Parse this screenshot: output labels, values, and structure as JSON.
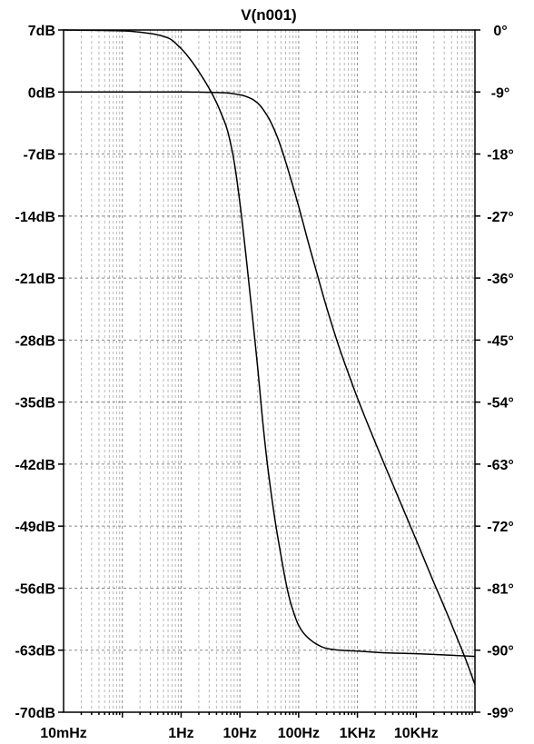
{
  "chart_data": {
    "type": "line",
    "title": "V(n001)",
    "x_scale": "log",
    "xlim": [
      0.01,
      100000
    ],
    "xticks": [
      {
        "value": 0.01,
        "label": "10mHz"
      },
      {
        "value": 1,
        "label": "1Hz"
      },
      {
        "value": 10,
        "label": "10Hz"
      },
      {
        "value": 100,
        "label": "100Hz"
      },
      {
        "value": 1000,
        "label": "1KHz"
      },
      {
        "value": 10000,
        "label": "10KHz"
      }
    ],
    "ylim_left": [
      -70,
      7
    ],
    "yticks_left": [
      {
        "value": 7,
        "label": "7dB"
      },
      {
        "value": 0,
        "label": "0dB"
      },
      {
        "value": -7,
        "label": "-7dB"
      },
      {
        "value": -14,
        "label": "-14dB"
      },
      {
        "value": -21,
        "label": "-21dB"
      },
      {
        "value": -28,
        "label": "-28dB"
      },
      {
        "value": -35,
        "label": "-35dB"
      },
      {
        "value": -42,
        "label": "-42dB"
      },
      {
        "value": -49,
        "label": "-49dB"
      },
      {
        "value": -56,
        "label": "-56dB"
      },
      {
        "value": -63,
        "label": "-63dB"
      },
      {
        "value": -70,
        "label": "-70dB"
      }
    ],
    "ylim_right": [
      -99,
      0
    ],
    "yticks_right": [
      {
        "value": 0,
        "label": "0°"
      },
      {
        "value": -9,
        "label": "-9°"
      },
      {
        "value": -18,
        "label": "-18°"
      },
      {
        "value": -27,
        "label": "-27°"
      },
      {
        "value": -36,
        "label": "-36°"
      },
      {
        "value": -45,
        "label": "-45°"
      },
      {
        "value": -54,
        "label": "-54°"
      },
      {
        "value": -63,
        "label": "-63°"
      },
      {
        "value": -72,
        "label": "-72°"
      },
      {
        "value": -81,
        "label": "-81°"
      },
      {
        "value": -90,
        "label": "-90°"
      },
      {
        "value": -99,
        "label": "-99°"
      }
    ],
    "grid": true,
    "series": [
      {
        "axis": "left",
        "x": [
          0.01,
          0.1,
          0.3,
          0.6,
          1,
          1.5,
          2,
          3,
          4,
          5,
          6,
          7,
          8,
          10,
          12,
          15,
          20,
          25,
          30,
          40,
          50,
          60,
          70,
          80,
          100,
          130,
          200,
          300,
          500,
          1000,
          3000,
          10000,
          100000
        ],
        "y": [
          7,
          6.9,
          6.6,
          6.1,
          4.9,
          3.5,
          2.3,
          0.4,
          -1.2,
          -2.7,
          -4.1,
          -5.9,
          -7.9,
          -12.5,
          -17.0,
          -23.0,
          -31.0,
          -37.8,
          -42.5,
          -48.5,
          -52.3,
          -55.2,
          -57.2,
          -58.5,
          -60.2,
          -61.3,
          -62.3,
          -62.8,
          -63.0,
          -63.1,
          -63.3,
          -63.4,
          -63.7
        ]
      },
      {
        "axis": "right",
        "x": [
          0.01,
          1,
          5,
          10,
          15,
          20,
          30,
          40,
          50,
          70,
          100,
          150,
          200,
          300,
          500,
          700,
          1000,
          2000,
          3000,
          5000,
          10000,
          20000,
          30000,
          50000,
          70000,
          100000
        ],
        "y": [
          -9,
          -9,
          -9.1,
          -9.4,
          -9.9,
          -10.6,
          -12.6,
          -14.8,
          -17.0,
          -21.0,
          -25.6,
          -31.2,
          -35.0,
          -40.3,
          -46.3,
          -49.8,
          -53.4,
          -59.8,
          -63.4,
          -67.9,
          -74.0,
          -80.2,
          -83.7,
          -88.3,
          -91.4,
          -95.0
        ]
      }
    ]
  }
}
